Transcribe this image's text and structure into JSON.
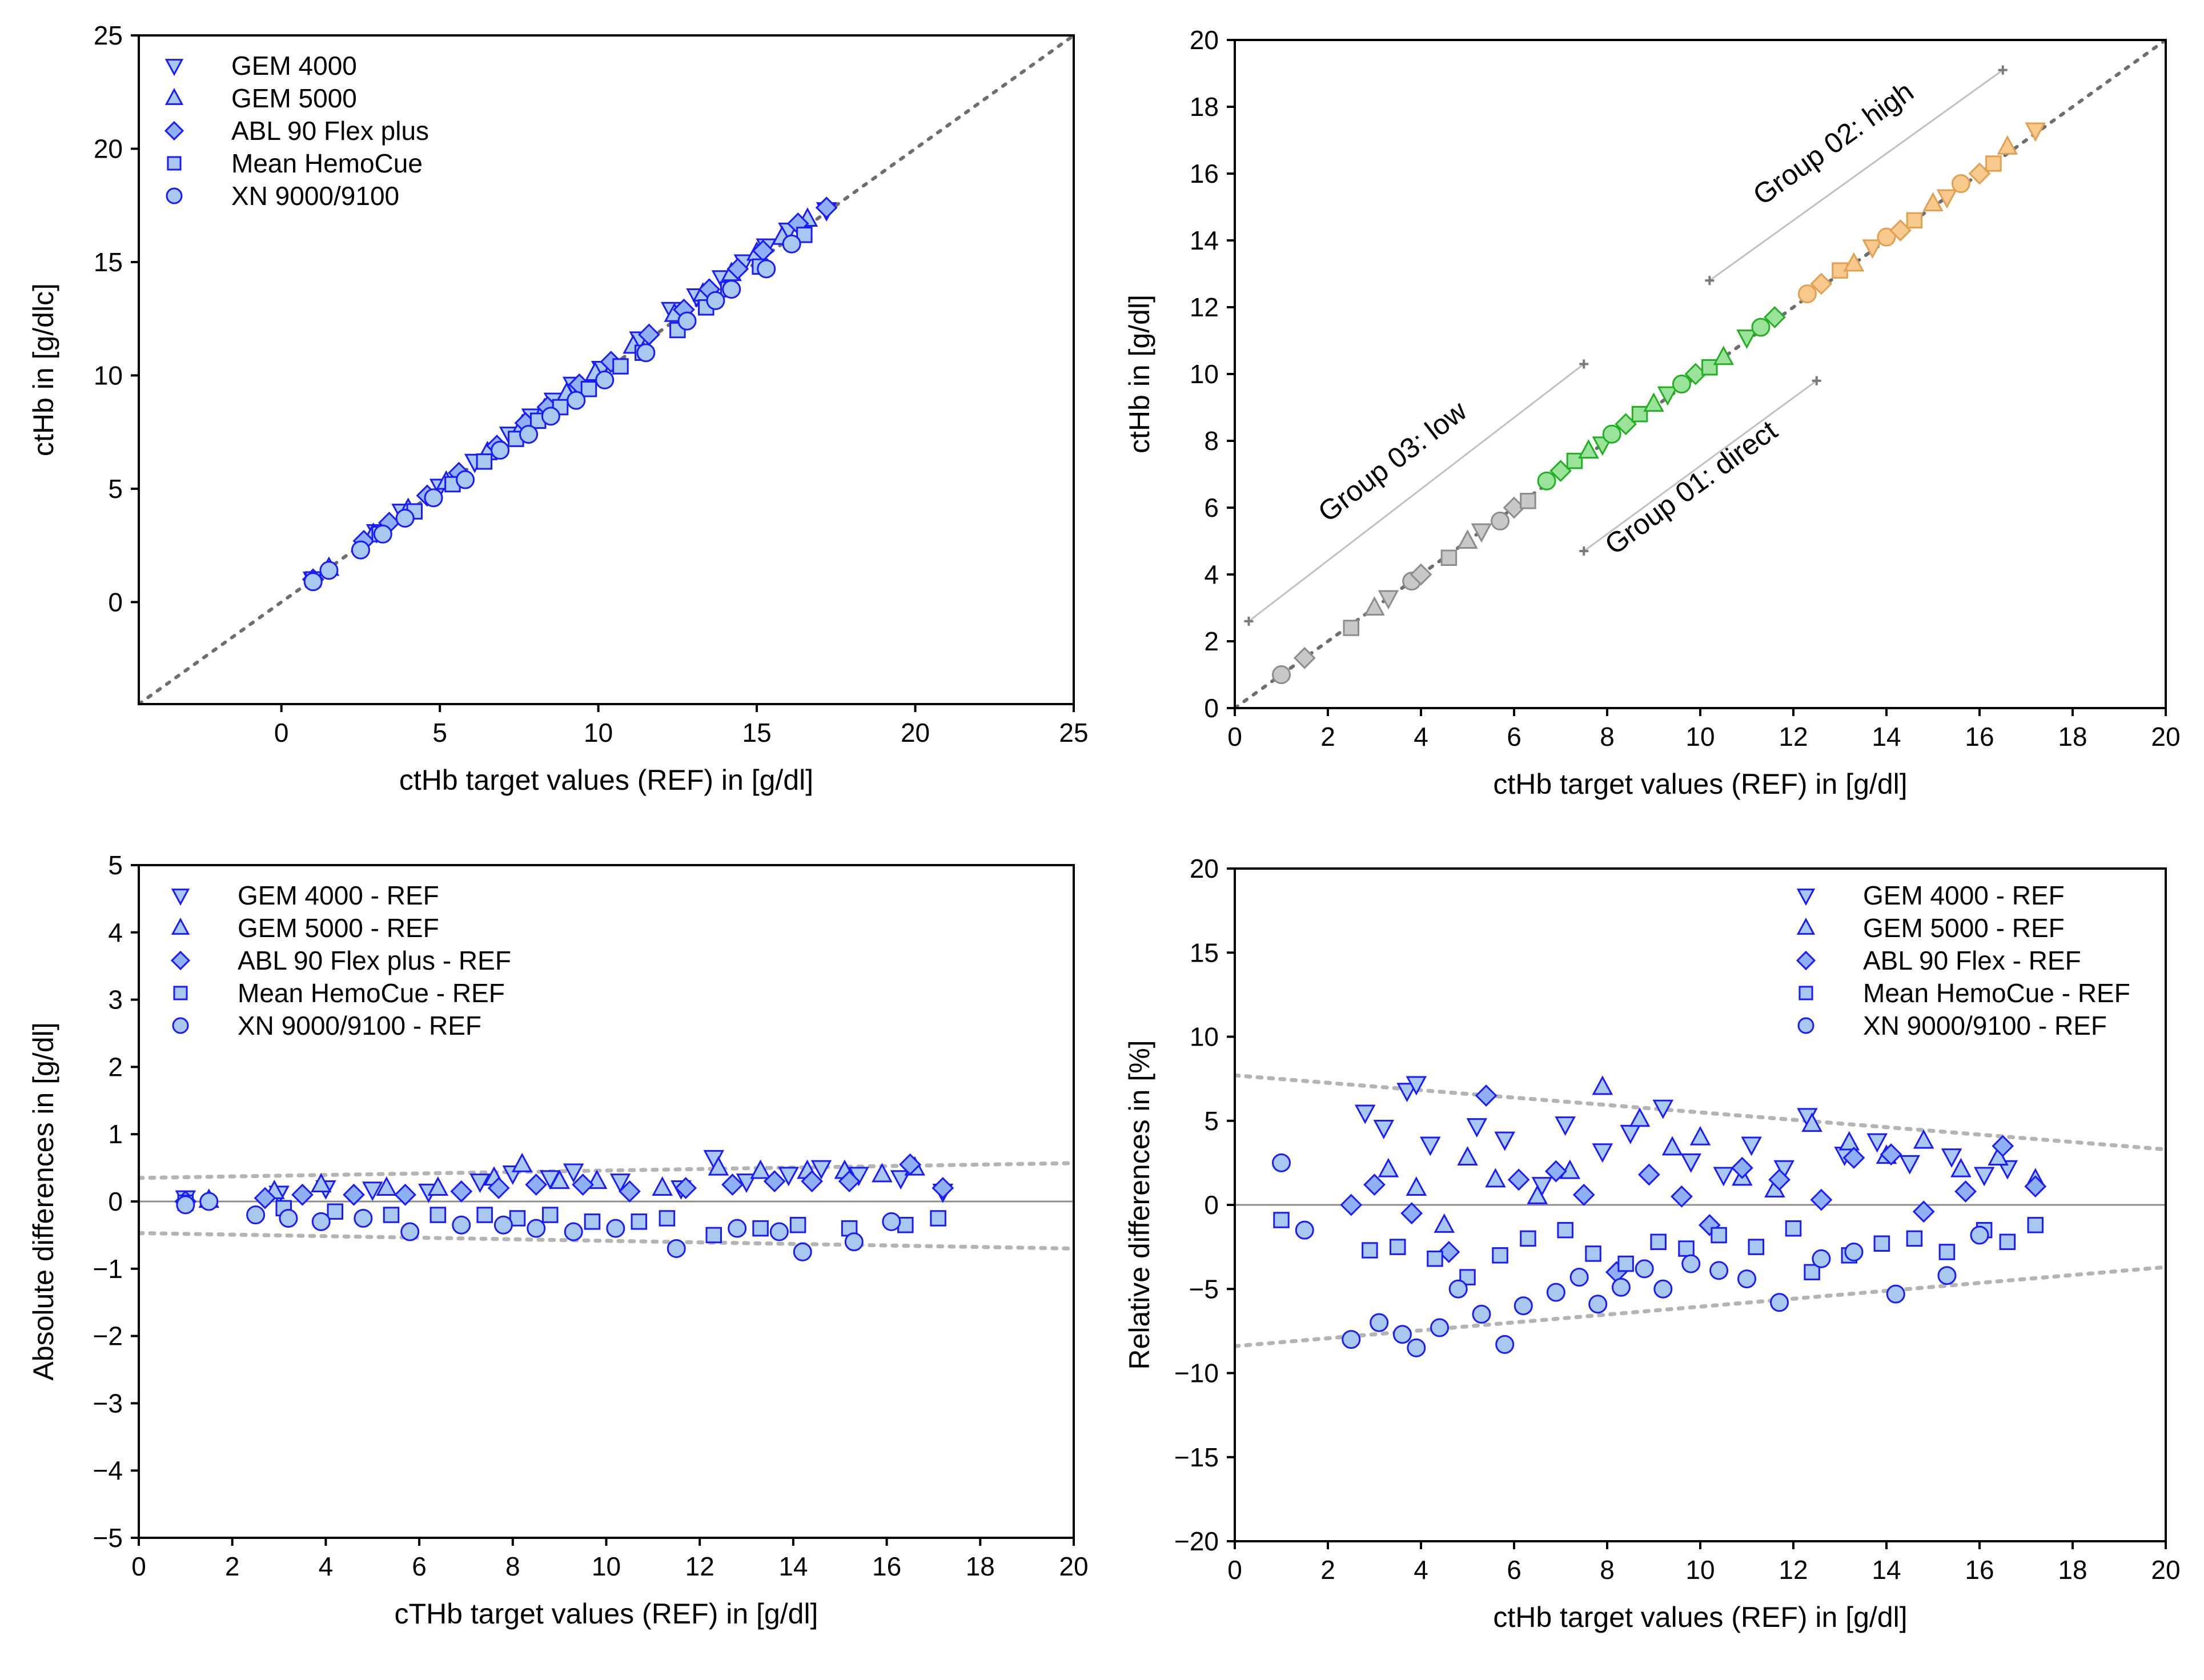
{
  "colors": {
    "marker_stroke": "#1a1aff",
    "marker_fill": "#a8c8f0",
    "marker_fill_diamond": "#8fb0f5",
    "gray_fill": "#c8c8c8",
    "gray_stroke": "#8c8c8c",
    "green_fill": "#9be39b",
    "green_stroke": "#22b022",
    "orange_fill": "#f7c98c",
    "orange_stroke": "#e0a050",
    "identity_line": "#6e6e6e",
    "limit_line": "#b4b4b4",
    "zero_line": "#8c8c8c",
    "group_line": "#c0c0c0"
  },
  "chart_data": [
    {
      "id": "scatter-all",
      "type": "scatter",
      "title": "",
      "xlabel": "ctHb target values (REF) in [g/dl]",
      "ylabel": "ctHb in [g/dlc]",
      "xlim": [
        -4.5,
        25
      ],
      "ylim": [
        -4.5,
        25
      ],
      "xticks": [
        0,
        5,
        10,
        15,
        20,
        25
      ],
      "yticks": [
        0,
        5,
        10,
        15,
        20,
        25
      ],
      "grid": false,
      "legend_position": "top-left",
      "identity_line": true,
      "series": [
        {
          "name": "GEM 4000",
          "marker": "triangle-down",
          "x": [
            1.0,
            3.0,
            3.8,
            5.0,
            6.1,
            7.2,
            7.9,
            8.6,
            9.2,
            10.1,
            11.3,
            12.3,
            13.1,
            13.9,
            14.6,
            15.3,
            16.0,
            17.2
          ],
          "y": [
            1.0,
            3.1,
            4.0,
            5.1,
            6.2,
            7.4,
            8.2,
            8.9,
            9.6,
            10.3,
            11.6,
            12.9,
            13.5,
            14.3,
            15.0,
            15.7,
            16.4,
            17.3
          ]
        },
        {
          "name": "GEM 5000",
          "marker": "triangle-up",
          "x": [
            1.5,
            2.9,
            4.0,
            5.2,
            6.5,
            7.6,
            8.3,
            9.0,
            9.9,
            11.1,
            12.4,
            13.3,
            14.2,
            15.0,
            15.8,
            16.6
          ],
          "y": [
            1.5,
            3.0,
            4.1,
            5.3,
            6.6,
            7.8,
            8.5,
            9.2,
            10.1,
            11.3,
            12.7,
            13.6,
            14.5,
            15.4,
            16.1,
            16.9
          ]
        },
        {
          "name": "ABL 90 Flex plus",
          "marker": "diamond",
          "x": [
            1.0,
            2.6,
            3.4,
            4.6,
            5.6,
            6.8,
            7.7,
            8.4,
            9.4,
            10.4,
            11.6,
            12.7,
            13.5,
            14.4,
            15.2,
            16.3,
            17.2
          ],
          "y": [
            1.0,
            2.7,
            3.5,
            4.7,
            5.7,
            6.9,
            7.9,
            8.6,
            9.6,
            10.6,
            11.8,
            12.9,
            13.8,
            14.7,
            15.5,
            16.7,
            17.4
          ]
        },
        {
          "name": "Mean HemoCue",
          "marker": "square",
          "x": [
            1.0,
            3.1,
            4.2,
            5.4,
            6.4,
            7.4,
            8.1,
            8.8,
            9.7,
            10.7,
            11.4,
            12.5,
            13.4,
            14.1,
            15.1,
            16.5
          ],
          "y": [
            1.0,
            3.0,
            4.0,
            5.2,
            6.2,
            7.2,
            8.0,
            8.6,
            9.4,
            10.4,
            11.0,
            12.0,
            13.0,
            13.8,
            14.8,
            16.2
          ]
        },
        {
          "name": "XN 9000/9100",
          "marker": "circle",
          "x": [
            1.0,
            1.5,
            2.5,
            3.2,
            3.9,
            4.8,
            5.8,
            6.9,
            7.8,
            8.5,
            9.3,
            10.2,
            11.5,
            12.8,
            13.7,
            14.2,
            15.3,
            16.1
          ],
          "y": [
            0.9,
            1.4,
            2.3,
            3.0,
            3.7,
            4.6,
            5.4,
            6.7,
            7.4,
            8.2,
            8.9,
            9.8,
            11.0,
            12.4,
            13.3,
            13.8,
            14.7,
            15.8
          ]
        }
      ]
    },
    {
      "id": "scatter-groups",
      "type": "scatter",
      "title": "",
      "xlabel": "ctHb target values (REF) in [g/dl]",
      "ylabel": "ctHb in [g/dl]",
      "xlim": [
        0,
        20
      ],
      "ylim": [
        0,
        20
      ],
      "xticks": [
        0,
        2,
        4,
        6,
        8,
        10,
        12,
        14,
        16,
        18,
        20
      ],
      "yticks": [
        0,
        2,
        4,
        6,
        8,
        10,
        12,
        14,
        16,
        18,
        20
      ],
      "grid": false,
      "identity_line": true,
      "groups": [
        {
          "name": "Group 03: low",
          "color": "gray",
          "x": [
            1.0,
            1.5,
            2.5,
            3.0,
            3.3,
            3.8,
            4.0,
            4.6,
            5.0,
            5.3,
            5.7,
            6.0,
            6.3
          ],
          "y": [
            1.0,
            1.5,
            2.4,
            3.0,
            3.3,
            3.8,
            4.0,
            4.5,
            5.0,
            5.3,
            5.6,
            6.0,
            6.2
          ]
        },
        {
          "name": "Group 01: direct",
          "color": "green",
          "x": [
            6.7,
            7.0,
            7.3,
            7.6,
            7.9,
            8.1,
            8.4,
            8.7,
            9.0,
            9.3,
            9.6,
            9.9,
            10.2,
            10.5,
            11.0,
            11.3,
            11.6
          ],
          "y": [
            6.8,
            7.1,
            7.4,
            7.7,
            7.9,
            8.2,
            8.5,
            8.8,
            9.1,
            9.4,
            9.7,
            10.0,
            10.2,
            10.5,
            11.1,
            11.4,
            11.7
          ]
        },
        {
          "name": "Group 02: high",
          "color": "orange",
          "x": [
            12.3,
            12.6,
            13.0,
            13.3,
            13.7,
            14.0,
            14.3,
            14.6,
            15.0,
            15.3,
            15.6,
            16.0,
            16.3,
            16.6,
            17.2
          ],
          "y": [
            12.4,
            12.7,
            13.1,
            13.3,
            13.8,
            14.1,
            14.3,
            14.6,
            15.1,
            15.3,
            15.7,
            16.0,
            16.3,
            16.8,
            17.3
          ]
        }
      ],
      "group_label_lines": [
        {
          "label": "Group 03: low",
          "from": [
            0.3,
            2.6
          ],
          "to": [
            7.5,
            10.3
          ]
        },
        {
          "label": "Group 02: high",
          "from": [
            10.2,
            12.8
          ],
          "to": [
            16.5,
            19.1
          ]
        },
        {
          "label": "Group 01: direct",
          "from": [
            7.5,
            4.7
          ],
          "to": [
            12.5,
            9.8
          ]
        }
      ]
    },
    {
      "id": "abs-diff",
      "type": "scatter",
      "title": "",
      "xlabel": "cTHb target values (REF) in [g/dl]",
      "ylabel": "Absolute differences in [g/dl]",
      "xlim": [
        0,
        20
      ],
      "ylim": [
        -5,
        5
      ],
      "xticks": [
        0,
        2,
        4,
        6,
        8,
        10,
        12,
        14,
        16,
        18,
        20
      ],
      "yticks": [
        -5,
        -4,
        -3,
        -2,
        -1,
        0,
        1,
        2,
        3,
        4,
        5
      ],
      "grid": false,
      "legend_position": "top-left",
      "zero_line": true,
      "limit_lines": [
        {
          "from": [
            0,
            0.35
          ],
          "to": [
            20,
            0.57
          ]
        },
        {
          "from": [
            0,
            -0.47
          ],
          "to": [
            20,
            -0.7
          ]
        }
      ],
      "series": [
        {
          "name": "GEM 4000 - REF",
          "marker": "triangle-down",
          "x": [
            1.0,
            3.0,
            4.0,
            5.0,
            6.2,
            7.3,
            8.0,
            8.8,
            9.3,
            10.3,
            11.6,
            12.3,
            13.0,
            13.9,
            14.6,
            15.4,
            16.3,
            17.2
          ],
          "y": [
            0.05,
            0.12,
            0.2,
            0.18,
            0.15,
            0.3,
            0.42,
            0.35,
            0.45,
            0.3,
            0.2,
            0.65,
            0.3,
            0.4,
            0.5,
            0.4,
            0.35,
            0.15
          ]
        },
        {
          "name": "GEM 5000 - REF",
          "marker": "triangle-up",
          "x": [
            1.5,
            2.9,
            3.9,
            5.3,
            6.4,
            7.6,
            8.2,
            9.0,
            9.8,
            11.2,
            12.4,
            13.3,
            14.3,
            15.1,
            15.9,
            16.6
          ],
          "y": [
            0.02,
            0.15,
            0.25,
            0.2,
            0.2,
            0.35,
            0.55,
            0.3,
            0.3,
            0.2,
            0.5,
            0.45,
            0.45,
            0.45,
            0.4,
            0.5
          ]
        },
        {
          "name": "ABL 90 Flex plus - REF",
          "marker": "diamond",
          "x": [
            1.0,
            2.7,
            3.5,
            4.6,
            5.7,
            6.9,
            7.7,
            8.5,
            9.5,
            10.5,
            11.7,
            12.7,
            13.6,
            14.4,
            15.2,
            16.5,
            17.2
          ],
          "y": [
            0.0,
            0.05,
            0.1,
            0.1,
            0.1,
            0.15,
            0.2,
            0.25,
            0.25,
            0.15,
            0.2,
            0.25,
            0.3,
            0.3,
            0.3,
            0.55,
            0.2
          ]
        },
        {
          "name": "Mean HemoCue - REF",
          "marker": "square",
          "x": [
            1.0,
            3.1,
            4.2,
            5.4,
            6.4,
            7.4,
            8.1,
            8.8,
            9.7,
            10.7,
            11.3,
            12.3,
            13.3,
            14.1,
            15.2,
            16.4,
            17.1
          ],
          "y": [
            -0.02,
            -0.1,
            -0.15,
            -0.2,
            -0.2,
            -0.2,
            -0.25,
            -0.2,
            -0.3,
            -0.3,
            -0.25,
            -0.5,
            -0.4,
            -0.35,
            -0.4,
            -0.35,
            -0.25
          ]
        },
        {
          "name": "XN 9000/9100 - REF",
          "marker": "circle",
          "x": [
            1.0,
            1.5,
            2.5,
            3.2,
            3.9,
            4.8,
            5.8,
            6.9,
            7.8,
            8.5,
            9.3,
            10.2,
            11.5,
            12.8,
            13.7,
            14.2,
            15.3,
            16.1
          ],
          "y": [
            -0.05,
            0.0,
            -0.2,
            -0.25,
            -0.3,
            -0.25,
            -0.45,
            -0.35,
            -0.35,
            -0.4,
            -0.45,
            -0.4,
            -0.7,
            -0.4,
            -0.45,
            -0.75,
            -0.6,
            -0.3
          ]
        }
      ]
    },
    {
      "id": "rel-diff",
      "type": "scatter",
      "title": "",
      "xlabel": "ctHb target values (REF) in [g/dl]",
      "ylabel": "Relative differences in [%]",
      "xlim": [
        0,
        20
      ],
      "ylim": [
        -20,
        20
      ],
      "xticks": [
        0,
        2,
        4,
        6,
        8,
        10,
        12,
        14,
        16,
        18,
        20
      ],
      "yticks": [
        -20,
        -15,
        -10,
        -5,
        0,
        5,
        10,
        15,
        20
      ],
      "grid": false,
      "legend_position": "top-right",
      "zero_line": true,
      "limit_lines": [
        {
          "from": [
            0,
            7.7
          ],
          "to": [
            20,
            3.3
          ]
        },
        {
          "from": [
            0,
            -8.4
          ],
          "to": [
            20,
            -3.7
          ]
        }
      ],
      "series": [
        {
          "name": "GEM 4000 - REF",
          "marker": "triangle-down",
          "x": [
            2.8,
            3.2,
            3.7,
            3.9,
            4.2,
            5.2,
            5.8,
            6.6,
            7.1,
            7.9,
            8.5,
            9.2,
            9.8,
            10.5,
            11.1,
            11.8,
            12.3,
            13.1,
            13.8,
            14.5,
            15.4,
            16.1,
            16.6
          ],
          "y": [
            5.5,
            4.6,
            6.8,
            7.2,
            3.6,
            4.7,
            3.9,
            1.2,
            4.8,
            3.2,
            4.3,
            5.8,
            2.6,
            1.8,
            3.6,
            2.2,
            5.3,
            3.0,
            3.8,
            2.5,
            2.9,
            1.8,
            2.2
          ]
        },
        {
          "name": "GEM 5000 - REF",
          "marker": "triangle-up",
          "x": [
            3.3,
            3.9,
            4.5,
            5.0,
            5.6,
            6.5,
            7.2,
            7.9,
            8.7,
            9.4,
            10.0,
            10.9,
            11.6,
            12.4,
            13.2,
            14.0,
            14.8,
            15.6,
            16.4,
            17.2
          ],
          "y": [
            2.1,
            1.0,
            -1.2,
            2.8,
            1.5,
            0.5,
            2.0,
            7.0,
            5.1,
            3.4,
            4.0,
            1.6,
            0.9,
            4.8,
            3.7,
            2.9,
            3.8,
            2.1,
            2.8,
            1.5
          ]
        },
        {
          "name": "ABL 90 Flex - REF",
          "marker": "diamond",
          "x": [
            2.5,
            3.0,
            3.8,
            4.6,
            5.4,
            6.1,
            6.9,
            7.5,
            8.2,
            8.9,
            9.6,
            10.2,
            10.9,
            11.7,
            12.6,
            13.3,
            14.1,
            14.8,
            15.7,
            16.5,
            17.2
          ],
          "y": [
            0.0,
            1.2,
            -0.5,
            -2.8,
            6.5,
            1.5,
            2.0,
            0.6,
            -4.0,
            1.8,
            0.5,
            -1.2,
            2.2,
            1.5,
            0.3,
            2.8,
            3.0,
            -0.4,
            0.8,
            3.5,
            1.1
          ]
        },
        {
          "name": "Mean HemoCue - REF",
          "marker": "square",
          "x": [
            1.0,
            2.9,
            3.5,
            4.3,
            5.0,
            5.7,
            6.3,
            7.1,
            7.7,
            8.4,
            9.1,
            9.7,
            10.4,
            11.2,
            12.0,
            12.4,
            13.2,
            13.9,
            14.6,
            15.3,
            16.1,
            16.6,
            17.2
          ],
          "y": [
            -0.9,
            -2.7,
            -2.5,
            -3.2,
            -4.3,
            -3.0,
            -2.0,
            -1.5,
            -2.9,
            -3.5,
            -2.2,
            -2.6,
            -1.8,
            -2.5,
            -1.4,
            -4.0,
            -3.0,
            -2.3,
            -2.0,
            -2.8,
            -1.5,
            -2.2,
            -1.2
          ]
        },
        {
          "name": "XN 9000/9100 - REF",
          "marker": "circle",
          "x": [
            1.0,
            1.5,
            2.5,
            3.1,
            3.6,
            3.9,
            4.4,
            4.8,
            5.3,
            5.8,
            6.2,
            6.9,
            7.4,
            7.8,
            8.3,
            8.8,
            9.2,
            9.8,
            10.4,
            11.0,
            11.7,
            12.6,
            13.3,
            14.2,
            15.3,
            16.0
          ],
          "y": [
            2.5,
            -1.5,
            -8.0,
            -7.0,
            -7.7,
            -8.5,
            -7.3,
            -5.0,
            -6.5,
            -8.3,
            -6.0,
            -5.2,
            -4.3,
            -5.9,
            -4.9,
            -3.8,
            -5.0,
            -3.5,
            -3.9,
            -4.4,
            -5.8,
            -3.2,
            -2.8,
            -5.3,
            -4.2,
            -1.8
          ]
        }
      ]
    }
  ]
}
